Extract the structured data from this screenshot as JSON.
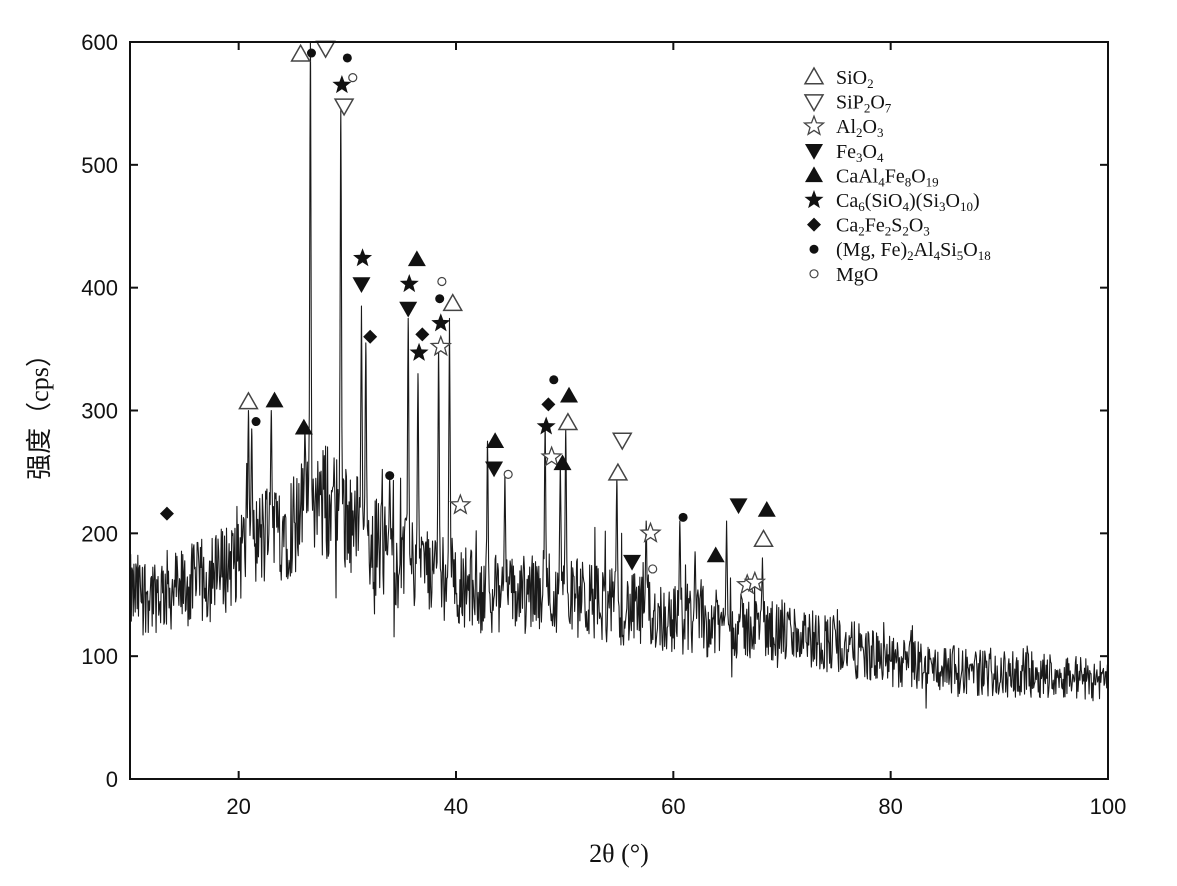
{
  "chart_data": {
    "type": "line",
    "xlabel": "2θ (°)",
    "ylabel": "强度（cps）",
    "xlim": [
      10,
      100
    ],
    "ylim": [
      0,
      600
    ],
    "x_ticks": [
      20,
      40,
      60,
      80,
      100
    ],
    "y_ticks": [
      0,
      100,
      200,
      300,
      400,
      500,
      600
    ],
    "legend_position": "top-right",
    "legend": [
      {
        "marker": "triangle-up-open",
        "label": "SiO2",
        "parts": [
          [
            "SiO",
            ""
          ],
          [
            "2",
            "sub"
          ]
        ]
      },
      {
        "marker": "triangle-down-open",
        "label": "SiP2O7",
        "parts": [
          [
            "SiP",
            ""
          ],
          [
            "2",
            "sub"
          ],
          [
            "O",
            ""
          ],
          [
            "7",
            "sub"
          ]
        ]
      },
      {
        "marker": "star-open",
        "label": "Al2O3",
        "parts": [
          [
            "Al",
            ""
          ],
          [
            "2",
            "sub"
          ],
          [
            "O",
            ""
          ],
          [
            "3",
            "sub"
          ]
        ]
      },
      {
        "marker": "triangle-down-filled",
        "label": "Fe3O4",
        "parts": [
          [
            "Fe",
            ""
          ],
          [
            "3",
            "sub"
          ],
          [
            "O",
            ""
          ],
          [
            "4",
            "sub"
          ]
        ]
      },
      {
        "marker": "triangle-up-filled",
        "label": "CaAl4Fe8O19",
        "parts": [
          [
            "CaAl",
            ""
          ],
          [
            "4",
            "sub"
          ],
          [
            "Fe",
            ""
          ],
          [
            "8",
            "sub"
          ],
          [
            "O",
            ""
          ],
          [
            "19",
            "sub"
          ]
        ]
      },
      {
        "marker": "star-filled",
        "label": "Ca6(SiO4)(Si3O10)",
        "parts": [
          [
            "Ca",
            ""
          ],
          [
            "6",
            "sub"
          ],
          [
            "(SiO",
            ""
          ],
          [
            "4",
            "sub"
          ],
          [
            ")(Si",
            ""
          ],
          [
            "3",
            "sub"
          ],
          [
            "O",
            ""
          ],
          [
            "10",
            "sub"
          ],
          [
            ")",
            ""
          ]
        ]
      },
      {
        "marker": "diamond-filled",
        "label": "Ca2Fe2S2O3",
        "parts": [
          [
            "Ca",
            ""
          ],
          [
            "2",
            "sub"
          ],
          [
            "Fe",
            ""
          ],
          [
            "2",
            "sub"
          ],
          [
            "S",
            ""
          ],
          [
            "2",
            "sub"
          ],
          [
            "O",
            ""
          ],
          [
            "3",
            "sub"
          ]
        ]
      },
      {
        "marker": "circle-filled",
        "label": "(Mg,Fe)2Al4Si5O18",
        "parts": [
          [
            "(Mg, Fe)",
            ""
          ],
          [
            "2",
            "sub"
          ],
          [
            "Al",
            ""
          ],
          [
            "4",
            "sub"
          ],
          [
            "Si",
            ""
          ],
          [
            "5",
            "sub"
          ],
          [
            "O",
            ""
          ],
          [
            "18",
            "sub"
          ]
        ]
      },
      {
        "marker": "circle-open",
        "label": "MgO",
        "parts": [
          [
            "MgO",
            ""
          ]
        ]
      }
    ],
    "series": [
      {
        "style": "noisy-line",
        "background": [
          [
            10,
            150
          ],
          [
            15,
            155
          ],
          [
            18,
            165
          ],
          [
            20,
            185
          ],
          [
            22,
            195
          ],
          [
            25,
            210
          ],
          [
            28,
            225
          ],
          [
            30,
            215
          ],
          [
            32,
            195
          ],
          [
            35,
            175
          ],
          [
            38,
            170
          ],
          [
            40,
            160
          ],
          [
            43,
            150
          ],
          [
            46,
            150
          ],
          [
            50,
            150
          ],
          [
            55,
            140
          ],
          [
            60,
            130
          ],
          [
            65,
            125
          ],
          [
            70,
            120
          ],
          [
            75,
            110
          ],
          [
            80,
            95
          ],
          [
            85,
            90
          ],
          [
            90,
            85
          ],
          [
            95,
            85
          ],
          [
            100,
            80
          ]
        ],
        "peaks": [
          [
            20.9,
            300
          ],
          [
            21.2,
            285
          ],
          [
            23.0,
            300
          ],
          [
            26.1,
            285
          ],
          [
            26.6,
            600
          ],
          [
            29.4,
            545
          ],
          [
            31.3,
            385
          ],
          [
            31.7,
            355
          ],
          [
            33.9,
            245
          ],
          [
            35.6,
            375
          ],
          [
            36.5,
            330
          ],
          [
            38.4,
            350
          ],
          [
            39.4,
            375
          ],
          [
            42.9,
            275
          ],
          [
            44.5,
            250
          ],
          [
            48.2,
            290
          ],
          [
            49.6,
            260
          ],
          [
            50.1,
            285
          ],
          [
            54.8,
            245
          ],
          [
            57.5,
            210
          ],
          [
            60.6,
            210
          ],
          [
            62.0,
            185
          ],
          [
            64.9,
            210
          ],
          [
            68.2,
            180
          ]
        ]
      }
    ],
    "phase_markers": [
      {
        "phase": "SiO2",
        "x": 20.9,
        "y": 307
      },
      {
        "phase": "SiO2",
        "x": 25.7,
        "y": 590
      },
      {
        "phase": "SiO2",
        "x": 39.7,
        "y": 387
      },
      {
        "phase": "SiO2",
        "x": 50.3,
        "y": 290
      },
      {
        "phase": "SiO2",
        "x": 54.9,
        "y": 249
      },
      {
        "phase": "SiO2",
        "x": 68.3,
        "y": 195
      },
      {
        "phase": "SiP2O7",
        "x": 28.0,
        "y": 595
      },
      {
        "phase": "SiP2O7",
        "x": 29.7,
        "y": 548
      },
      {
        "phase": "SiP2O7",
        "x": 55.3,
        "y": 276
      },
      {
        "phase": "Al2O3",
        "x": 38.6,
        "y": 352
      },
      {
        "phase": "Al2O3",
        "x": 40.4,
        "y": 223
      },
      {
        "phase": "Al2O3",
        "x": 48.8,
        "y": 262
      },
      {
        "phase": "Al2O3",
        "x": 57.9,
        "y": 200
      },
      {
        "phase": "Al2O3",
        "x": 66.8,
        "y": 158
      },
      {
        "phase": "Al2O3",
        "x": 67.5,
        "y": 160
      },
      {
        "phase": "Fe3O4",
        "x": 31.3,
        "y": 403
      },
      {
        "phase": "Fe3O4",
        "x": 35.6,
        "y": 383
      },
      {
        "phase": "Fe3O4",
        "x": 43.5,
        "y": 253
      },
      {
        "phase": "Fe3O4",
        "x": 56.2,
        "y": 177
      },
      {
        "phase": "Fe3O4",
        "x": 66.0,
        "y": 223
      },
      {
        "phase": "CaAl4Fe8O19",
        "x": 23.3,
        "y": 308
      },
      {
        "phase": "CaAl4Fe8O19",
        "x": 26.0,
        "y": 286
      },
      {
        "phase": "CaAl4Fe8O19",
        "x": 36.4,
        "y": 423
      },
      {
        "phase": "CaAl4Fe8O19",
        "x": 43.6,
        "y": 275
      },
      {
        "phase": "CaAl4Fe8O19",
        "x": 50.4,
        "y": 312
      },
      {
        "phase": "CaAl4Fe8O19",
        "x": 49.8,
        "y": 257
      },
      {
        "phase": "CaAl4Fe8O19",
        "x": 63.9,
        "y": 182
      },
      {
        "phase": "CaAl4Fe8O19",
        "x": 68.6,
        "y": 219
      },
      {
        "phase": "Ca6(SiO4)(Si3O10)",
        "x": 29.5,
        "y": 565
      },
      {
        "phase": "Ca6(SiO4)(Si3O10)",
        "x": 31.4,
        "y": 424
      },
      {
        "phase": "Ca6(SiO4)(Si3O10)",
        "x": 35.7,
        "y": 403
      },
      {
        "phase": "Ca6(SiO4)(Si3O10)",
        "x": 36.6,
        "y": 347
      },
      {
        "phase": "Ca6(SiO4)(Si3O10)",
        "x": 38.6,
        "y": 371
      },
      {
        "phase": "Ca6(SiO4)(Si3O10)",
        "x": 48.3,
        "y": 287
      },
      {
        "phase": "Ca2Fe2S2O3",
        "x": 13.4,
        "y": 216
      },
      {
        "phase": "Ca2Fe2S2O3",
        "x": 32.1,
        "y": 360
      },
      {
        "phase": "Ca2Fe2S2O3",
        "x": 36.9,
        "y": 362
      },
      {
        "phase": "Ca2Fe2S2O3",
        "x": 48.5,
        "y": 305
      },
      {
        "phase": "(Mg,Fe)2Al4Si5O18",
        "x": 21.6,
        "y": 291
      },
      {
        "phase": "(Mg,Fe)2Al4Si5O18",
        "x": 26.7,
        "y": 591
      },
      {
        "phase": "(Mg,Fe)2Al4Si5O18",
        "x": 30.0,
        "y": 587
      },
      {
        "phase": "(Mg,Fe)2Al4Si5O18",
        "x": 33.9,
        "y": 247
      },
      {
        "phase": "(Mg,Fe)2Al4Si5O18",
        "x": 38.5,
        "y": 391
      },
      {
        "phase": "(Mg,Fe)2Al4Si5O18",
        "x": 49.0,
        "y": 325
      },
      {
        "phase": "(Mg,Fe)2Al4Si5O18",
        "x": 60.9,
        "y": 213
      },
      {
        "phase": "MgO",
        "x": 30.5,
        "y": 571
      },
      {
        "phase": "MgO",
        "x": 38.7,
        "y": 405
      },
      {
        "phase": "MgO",
        "x": 44.8,
        "y": 248
      },
      {
        "phase": "MgO",
        "x": 58.1,
        "y": 171
      }
    ]
  }
}
